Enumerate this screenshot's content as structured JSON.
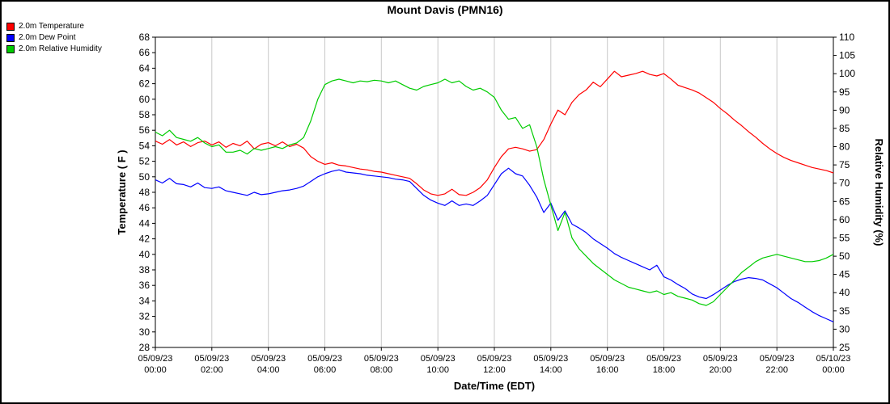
{
  "window": {
    "frame_color": "#000000",
    "background": "#ffffff"
  },
  "chart_data": {
    "type": "line",
    "title": "Mount Davis (PMN16)",
    "xlabel": "Date/Time (EDT)",
    "ylabel_left": "Temperature ( F )",
    "ylabel_right": "Relative Humidity (%)",
    "legend_position": "top-left",
    "grid": "vertical",
    "grid_color": "#c8c8c8",
    "x_unit": "hours since 05/09/23 00:00 EDT",
    "x_ticks": [
      {
        "hour": 0,
        "line1": "05/09/23",
        "line2": "00:00"
      },
      {
        "hour": 2,
        "line1": "05/09/23",
        "line2": "02:00"
      },
      {
        "hour": 4,
        "line1": "05/09/23",
        "line2": "04:00"
      },
      {
        "hour": 6,
        "line1": "05/09/23",
        "line2": "06:00"
      },
      {
        "hour": 8,
        "line1": "05/09/23",
        "line2": "08:00"
      },
      {
        "hour": 10,
        "line1": "05/09/23",
        "line2": "10:00"
      },
      {
        "hour": 12,
        "line1": "05/09/23",
        "line2": "12:00"
      },
      {
        "hour": 14,
        "line1": "05/09/23",
        "line2": "14:00"
      },
      {
        "hour": 16,
        "line1": "05/09/23",
        "line2": "16:00"
      },
      {
        "hour": 18,
        "line1": "05/09/23",
        "line2": "18:00"
      },
      {
        "hour": 20,
        "line1": "05/09/23",
        "line2": "20:00"
      },
      {
        "hour": 22,
        "line1": "05/09/23",
        "line2": "22:00"
      },
      {
        "hour": 24,
        "line1": "05/10/23",
        "line2": "00:00"
      }
    ],
    "y_left": {
      "min": 28,
      "max": 68,
      "ticks": [
        28,
        30,
        32,
        34,
        36,
        38,
        40,
        42,
        44,
        46,
        48,
        50,
        52,
        54,
        56,
        58,
        60,
        62,
        64,
        66,
        68
      ]
    },
    "y_right": {
      "min": 25,
      "max": 110,
      "ticks": [
        25,
        30,
        35,
        40,
        45,
        50,
        55,
        60,
        65,
        70,
        75,
        80,
        85,
        90,
        95,
        100,
        105,
        110
      ]
    },
    "x": [
      0,
      0.25,
      0.5,
      0.75,
      1,
      1.25,
      1.5,
      1.75,
      2,
      2.25,
      2.5,
      2.75,
      3,
      3.25,
      3.5,
      3.75,
      4,
      4.25,
      4.5,
      4.75,
      5,
      5.25,
      5.5,
      5.75,
      6,
      6.25,
      6.5,
      6.75,
      7,
      7.25,
      7.5,
      7.75,
      8,
      8.25,
      8.5,
      8.75,
      9,
      9.25,
      9.5,
      9.75,
      10,
      10.25,
      10.5,
      10.75,
      11,
      11.25,
      11.5,
      11.75,
      12,
      12.25,
      12.5,
      12.75,
      13,
      13.25,
      13.5,
      13.75,
      14,
      14.25,
      14.5,
      14.75,
      15,
      15.25,
      15.5,
      15.75,
      16,
      16.25,
      16.5,
      16.75,
      17,
      17.25,
      17.5,
      17.75,
      18,
      18.25,
      18.5,
      18.75,
      19,
      19.25,
      19.5,
      19.75,
      20,
      20.25,
      20.5,
      20.75,
      21,
      21.25,
      21.5,
      21.75,
      22,
      22.25,
      22.5,
      22.75,
      23,
      23.25,
      23.5,
      23.75,
      24
    ],
    "series": [
      {
        "name": "2.0m Temperature",
        "color": "#ff0000",
        "axis": "left",
        "values": [
          54.6,
          54.2,
          54.8,
          54.1,
          54.5,
          53.9,
          54.4,
          54.6,
          54.1,
          54.5,
          53.8,
          54.3,
          54.0,
          54.6,
          53.6,
          54.2,
          54.4,
          54.0,
          54.5,
          53.9,
          54.2,
          53.7,
          52.6,
          52.0,
          51.6,
          51.8,
          51.5,
          51.4,
          51.2,
          51.0,
          50.9,
          50.7,
          50.6,
          50.4,
          50.2,
          50.0,
          49.8,
          49.1,
          48.3,
          47.8,
          47.6,
          47.8,
          48.4,
          47.7,
          47.6,
          48.0,
          48.6,
          49.6,
          51.2,
          52.6,
          53.6,
          53.8,
          53.6,
          53.3,
          53.5,
          54.8,
          56.8,
          58.6,
          58.0,
          59.6,
          60.6,
          61.2,
          62.2,
          61.6,
          62.6,
          63.6,
          62.9,
          63.1,
          63.3,
          63.6,
          63.2,
          63.0,
          63.3,
          62.6,
          61.8,
          61.5,
          61.2,
          60.8,
          60.2,
          59.6,
          58.8,
          58.1,
          57.3,
          56.6,
          55.8,
          55.1,
          54.3,
          53.6,
          53.0,
          52.5,
          52.1,
          51.8,
          51.5,
          51.2,
          51.0,
          50.8,
          50.5
        ]
      },
      {
        "name": "2.0m Dew Point",
        "color": "#0000ff",
        "axis": "left",
        "values": [
          49.6,
          49.2,
          49.8,
          49.1,
          49.0,
          48.7,
          49.2,
          48.6,
          48.5,
          48.7,
          48.2,
          48.0,
          47.8,
          47.6,
          48.0,
          47.7,
          47.8,
          48.0,
          48.2,
          48.3,
          48.5,
          48.8,
          49.4,
          50.0,
          50.4,
          50.7,
          50.9,
          50.6,
          50.5,
          50.4,
          50.2,
          50.1,
          50.0,
          49.9,
          49.7,
          49.6,
          49.4,
          48.5,
          47.6,
          47.0,
          46.6,
          46.3,
          46.9,
          46.3,
          46.5,
          46.3,
          46.9,
          47.6,
          49.0,
          50.4,
          51.1,
          50.4,
          50.1,
          48.9,
          47.4,
          45.4,
          46.6,
          44.4,
          45.6,
          43.9,
          43.4,
          42.8,
          42.0,
          41.4,
          40.8,
          40.1,
          39.6,
          39.2,
          38.8,
          38.4,
          38.0,
          38.6,
          37.1,
          36.7,
          36.1,
          35.6,
          34.9,
          34.5,
          34.3,
          34.8,
          35.4,
          36.0,
          36.5,
          36.8,
          37.0,
          36.9,
          36.7,
          36.2,
          35.7,
          35.0,
          34.3,
          33.8,
          33.2,
          32.6,
          32.1,
          31.7,
          31.3
        ]
      },
      {
        "name": "2.0m Relative Humidity",
        "color": "#00cc00",
        "axis": "right",
        "values": [
          84,
          83,
          84.5,
          82.5,
          82,
          81.5,
          82.5,
          81,
          80,
          80.5,
          78.5,
          78.5,
          79,
          78,
          79.5,
          79,
          79.5,
          80,
          79.5,
          80.5,
          81,
          82.5,
          87,
          93,
          97,
          98,
          98.5,
          98,
          97.5,
          98,
          97.8,
          98.2,
          98,
          97.5,
          98,
          97,
          96,
          95.5,
          96.5,
          97,
          97.5,
          98.5,
          97.5,
          98,
          96.5,
          95.5,
          96,
          95,
          93.5,
          90,
          87.5,
          88,
          85,
          86,
          80,
          71,
          64,
          57,
          62,
          55,
          52,
          50,
          48,
          46.5,
          45,
          43.5,
          42.5,
          41.5,
          41,
          40.5,
          40,
          40.5,
          39.5,
          40,
          39,
          38.5,
          38,
          37,
          36.5,
          37.5,
          39.5,
          41.5,
          43.5,
          45.5,
          47,
          48.5,
          49.5,
          50,
          50.5,
          50,
          49.5,
          49,
          48.5,
          48.5,
          48.8,
          49.5,
          50.5
        ]
      }
    ]
  }
}
